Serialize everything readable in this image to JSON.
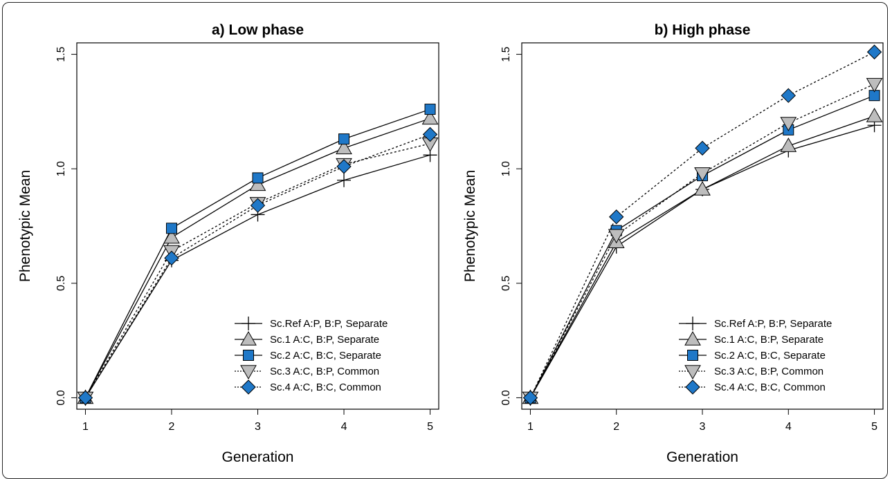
{
  "chart_data": [
    {
      "type": "line",
      "title": "a) Low phase",
      "xlabel": "Generation",
      "ylabel": "Phenotypic Mean",
      "x": [
        1,
        2,
        3,
        4,
        5
      ],
      "xlim": [
        0.9,
        5.1
      ],
      "ylim": [
        -0.05,
        1.55
      ],
      "xticks": [
        "1",
        "2",
        "3",
        "4",
        "5"
      ],
      "yticks": [
        "0.0",
        "0.5",
        "1.0",
        "1.5"
      ],
      "legend_position": "bottom-right",
      "series": [
        {
          "name": "Sc.Ref A:P, B:P, Separate",
          "marker": "plus",
          "line": "solid",
          "values": [
            0.0,
            0.6,
            0.8,
            0.95,
            1.06
          ]
        },
        {
          "name": "Sc.1   A:C, B:P, Separate",
          "marker": "triangle-up",
          "line": "solid",
          "values": [
            0.0,
            0.7,
            0.93,
            1.09,
            1.22
          ]
        },
        {
          "name": "Sc.2   A:C, B:C, Separate",
          "marker": "square",
          "line": "solid",
          "values": [
            0.0,
            0.74,
            0.96,
            1.13,
            1.26
          ]
        },
        {
          "name": "Sc.3   A:C, B:P, Common",
          "marker": "triangle-down",
          "line": "dotted",
          "values": [
            0.0,
            0.64,
            0.85,
            1.02,
            1.11
          ]
        },
        {
          "name": "Sc.4   A:C, B:C, Common",
          "marker": "diamond",
          "line": "dotted",
          "values": [
            0.0,
            0.61,
            0.84,
            1.01,
            1.15
          ]
        }
      ]
    },
    {
      "type": "line",
      "title": "b) High phase",
      "xlabel": "Generation",
      "ylabel": "Phenotypic Mean",
      "x": [
        1,
        2,
        3,
        4,
        5
      ],
      "xlim": [
        0.9,
        5.1
      ],
      "ylim": [
        -0.05,
        1.55
      ],
      "xticks": [
        "1",
        "2",
        "3",
        "4",
        "5"
      ],
      "yticks": [
        "0.0",
        "0.5",
        "1.0",
        "1.5"
      ],
      "legend_position": "bottom-right",
      "series": [
        {
          "name": "Sc.Ref A:P, B:P, Separate",
          "marker": "plus",
          "line": "solid",
          "values": [
            0.0,
            0.66,
            0.91,
            1.08,
            1.19
          ]
        },
        {
          "name": "Sc.1   A:C, B:P, Separate",
          "marker": "triangle-up",
          "line": "solid",
          "values": [
            0.0,
            0.68,
            0.91,
            1.1,
            1.23
          ]
        },
        {
          "name": "Sc.2   A:C, B:C, Separate",
          "marker": "square",
          "line": "solid",
          "values": [
            0.0,
            0.73,
            0.97,
            1.17,
            1.32
          ]
        },
        {
          "name": "Sc.3   A:C, B:P, Common",
          "marker": "triangle-down",
          "line": "dotted",
          "values": [
            0.0,
            0.71,
            0.98,
            1.2,
            1.37
          ]
        },
        {
          "name": "Sc.4   A:C, B:C, Common",
          "marker": "diamond",
          "line": "dotted",
          "values": [
            0.0,
            0.79,
            1.09,
            1.32,
            1.51
          ]
        }
      ]
    }
  ],
  "colors": {
    "blue": "#1f78c8",
    "gray": "#bdbdbd",
    "line": "#000000"
  }
}
